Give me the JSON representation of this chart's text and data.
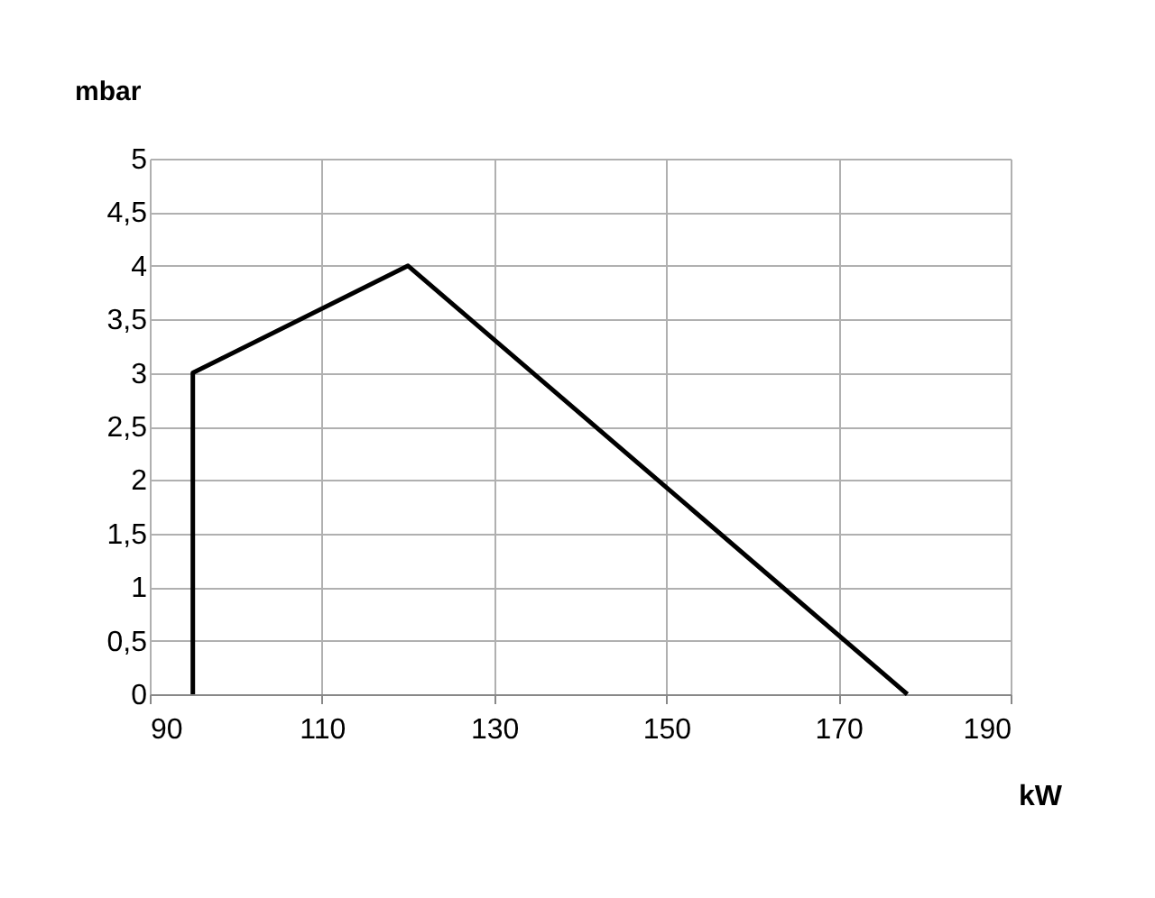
{
  "chart_data": {
    "type": "line",
    "xlabel": "kW",
    "ylabel": "mbar",
    "x": [
      95,
      95,
      120,
      178
    ],
    "series": [
      {
        "color": "#000000",
        "values": [
          0,
          3,
          4,
          0
        ]
      }
    ],
    "xlim": [
      90,
      190
    ],
    "xticks": [
      90,
      110,
      130,
      150,
      170,
      190
    ],
    "ylim": [
      0,
      5
    ],
    "yticks": [
      0,
      {
        "value": 0.5,
        "label": "0,5"
      },
      1,
      {
        "value": 1.5,
        "label": "1,5"
      },
      2,
      {
        "value": 2.5,
        "label": "2,5"
      },
      3,
      {
        "value": 3.5,
        "label": "3,5"
      },
      4,
      {
        "value": 4.5,
        "label": "4,5"
      },
      5
    ],
    "grid": true,
    "marker": "none",
    "line_style": "solid"
  }
}
